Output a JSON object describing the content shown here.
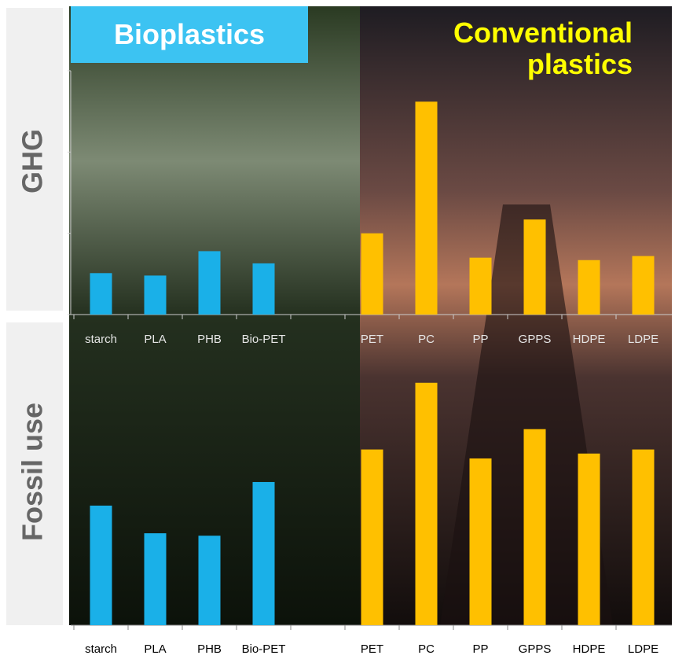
{
  "chart_data": [
    {
      "type": "bar",
      "title": "GHG",
      "categories": [
        "starch",
        "PLA",
        "PHB",
        "Bio-PET",
        null,
        "PET",
        "PC",
        "PP",
        "GPPS",
        "HDPE",
        "LDPE"
      ],
      "series": [
        {
          "name": "Bioplastics",
          "color": "#1ab0e8",
          "values": [
            0.51,
            0.48,
            0.78,
            0.63,
            null,
            null,
            null,
            null,
            null,
            null,
            null
          ]
        },
        {
          "name": "Conventional plastics",
          "color": "#ffc000",
          "values": [
            null,
            null,
            null,
            null,
            null,
            1.0,
            2.62,
            0.7,
            1.17,
            0.67,
            0.72
          ]
        }
      ],
      "ylim": [
        0,
        3
      ],
      "yticks": [
        0,
        1,
        2,
        3
      ]
    },
    {
      "type": "bar",
      "title": "Fossil use",
      "categories": [
        "starch",
        "PLA",
        "PHB",
        "Bio-PET",
        null,
        "PET",
        "PC",
        "PP",
        "GPPS",
        "HDPE",
        "LDPE"
      ],
      "series": [
        {
          "color": "#1ab0e8",
          "values": [
            1.47,
            1.13,
            1.1,
            1.76,
            null,
            null,
            null,
            null,
            null,
            null,
            null
          ]
        },
        {
          "color": "#ffc000",
          "values": [
            null,
            null,
            null,
            null,
            null,
            2.16,
            2.98,
            2.05,
            2.41,
            2.11,
            2.16
          ]
        }
      ],
      "ylim": [
        0,
        3.2
      ]
    }
  ]
}
